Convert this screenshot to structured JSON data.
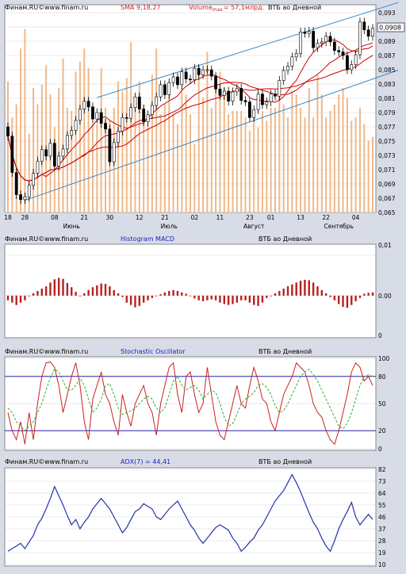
{
  "panels": {
    "price": {
      "source": "Финам.RU©",
      "site": "www.finam.ru",
      "indicator": "SMA 9,18,27",
      "volume_label": "Volume",
      "volume_sub": "max",
      "volume_value": "= 57,1млрд.",
      "instrument": "ВТБ ао Дневной",
      "last_price": "0,0908"
    },
    "macd": {
      "source": "Финам.RU©",
      "site": "www.finam.ru",
      "indicator": "Histogram MACD",
      "instrument": "ВТБ ао Дневной"
    },
    "stoch": {
      "source": "Финам.RU©",
      "site": "www.finam.ru",
      "indicator": "Stochastic Oscillator",
      "instrument": "ВТБ ао Дневной"
    },
    "adx": {
      "source": "Финам.RU©",
      "site": "www.finam.ru",
      "indicator": "ADX(7) = 44,41",
      "instrument": "ВТБ ао Дневной"
    }
  },
  "colors": {
    "background": "#d8dce6",
    "panel": "#ffffff",
    "grid": "#d0d4dc",
    "candle": "#000000",
    "volume": "#f0b888",
    "sma": "#cc0000",
    "channel": "#3388cc",
    "macd": "#b82020",
    "stoch_k": "#cc2020",
    "stoch_d": "#33aa33",
    "stoch_level": "#2222aa",
    "adx": "#2233aa",
    "title_blue": "#2020c0",
    "title_red": "#d02020"
  },
  "chart_data": [
    {
      "type": "candlestick",
      "name": "price",
      "ylim": [
        0.065,
        0.093
      ],
      "y_ticks": [
        "0,093",
        "0,091",
        "0,089",
        "0,087",
        "0,085",
        "0,083",
        "0,081",
        "0,079",
        "0,077",
        "0,075",
        "0,073",
        "0,071",
        "0,069",
        "0,067",
        "0,065"
      ],
      "x_tick_labels": [
        "18",
        "28",
        "08",
        "21",
        "30",
        "12",
        "21",
        "02",
        "11",
        "23",
        "01",
        "13",
        "22",
        "04"
      ],
      "x_tick_index": [
        0,
        4,
        11,
        18,
        24,
        31,
        37,
        44,
        50,
        57,
        62,
        69,
        75,
        82
      ],
      "month_labels": [
        "Июнь",
        "Июль",
        "Август",
        "Сентябрь"
      ],
      "month_index": [
        15,
        38,
        58,
        78
      ],
      "close": [
        0.0757,
        0.0706,
        0.0675,
        0.0668,
        0.0672,
        0.0688,
        0.0705,
        0.0722,
        0.0738,
        0.0729,
        0.0747,
        0.0715,
        0.0729,
        0.0739,
        0.0758,
        0.0765,
        0.0779,
        0.0795,
        0.0806,
        0.0798,
        0.0781,
        0.079,
        0.0775,
        0.0767,
        0.0721,
        0.0748,
        0.0764,
        0.0783,
        0.0782,
        0.0797,
        0.0812,
        0.0795,
        0.0777,
        0.0787,
        0.08,
        0.0812,
        0.0829,
        0.0815,
        0.0832,
        0.084,
        0.0829,
        0.0847,
        0.0837,
        0.0836,
        0.0852,
        0.0843,
        0.085,
        0.085,
        0.0841,
        0.0823,
        0.0814,
        0.082,
        0.0806,
        0.0819,
        0.0824,
        0.0807,
        0.0805,
        0.0783,
        0.0794,
        0.0816,
        0.0801,
        0.0805,
        0.0816,
        0.0813,
        0.0835,
        0.0849,
        0.0855,
        0.0868,
        0.0873,
        0.0903,
        0.0901,
        0.0904,
        0.0881,
        0.0887,
        0.0889,
        0.0897,
        0.0889,
        0.0877,
        0.0875,
        0.087,
        0.085,
        0.0857,
        0.0871,
        0.0917,
        0.0906,
        0.0897,
        0.0908
      ],
      "open": [
        0.077,
        0.0757,
        0.0706,
        0.0675,
        0.0668,
        0.0672,
        0.0688,
        0.0705,
        0.0722,
        0.0738,
        0.0729,
        0.0747,
        0.0715,
        0.0729,
        0.0739,
        0.0758,
        0.0765,
        0.0779,
        0.0795,
        0.0806,
        0.0798,
        0.0781,
        0.079,
        0.0775,
        0.0767,
        0.0721,
        0.0748,
        0.0764,
        0.0783,
        0.0782,
        0.0797,
        0.0812,
        0.0795,
        0.0777,
        0.0787,
        0.08,
        0.0812,
        0.0829,
        0.0815,
        0.0832,
        0.084,
        0.0829,
        0.0847,
        0.0837,
        0.0836,
        0.0852,
        0.0843,
        0.085,
        0.085,
        0.0841,
        0.0823,
        0.0814,
        0.082,
        0.0806,
        0.0819,
        0.0824,
        0.0807,
        0.0805,
        0.0783,
        0.0794,
        0.0816,
        0.0801,
        0.0805,
        0.0816,
        0.0813,
        0.0835,
        0.0849,
        0.0855,
        0.0868,
        0.0873,
        0.0903,
        0.0901,
        0.0904,
        0.0881,
        0.0887,
        0.0889,
        0.0897,
        0.0889,
        0.0877,
        0.0875,
        0.087,
        0.085,
        0.0857,
        0.0871,
        0.0917,
        0.0906,
        0.0897
      ],
      "volume": [
        40,
        29,
        33,
        50,
        56,
        24,
        38,
        33,
        39,
        45,
        36,
        26,
        38,
        47,
        32,
        31,
        43,
        46,
        50,
        44,
        27,
        27,
        44,
        32,
        28,
        32,
        40,
        37,
        41,
        52,
        35,
        40,
        33,
        27,
        42,
        50,
        30,
        33,
        40,
        30,
        27,
        38,
        36,
        30,
        21,
        45,
        35,
        49,
        32,
        38,
        43,
        38,
        30,
        31,
        31,
        31,
        29,
        25,
        30,
        26,
        31,
        28,
        32,
        32,
        38,
        33,
        29,
        37,
        36,
        32,
        29,
        38,
        29,
        42,
        36,
        29,
        31,
        33,
        36,
        38,
        35,
        28,
        29,
        32,
        27,
        22,
        23
      ],
      "sma_periods": [
        9,
        18,
        27
      ],
      "channel_upper": [
        [
          21,
          0.0811
        ],
        [
          86,
          0.0933
        ]
      ],
      "channel_lower": [
        [
          4,
          0.0667
        ],
        [
          86,
          0.0837
        ]
      ]
    },
    {
      "type": "bar",
      "name": "Histogram MACD",
      "ylim": [
        -0.0008,
        0.001
      ],
      "y_ticks": [
        "0,01",
        "0.00",
        "0"
      ],
      "values": [
        -0.0001,
        -0.00015,
        -0.0002,
        -0.00015,
        -0.0001,
        0.0,
        5e-05,
        0.0001,
        0.00015,
        0.0002,
        0.00028,
        0.00035,
        0.00038,
        0.00036,
        0.00027,
        0.00018,
        8e-05,
        0.0,
        5e-05,
        0.00012,
        0.00018,
        0.00022,
        0.00026,
        0.00025,
        0.0002,
        0.00012,
        5e-05,
        -3e-05,
        -0.00015,
        -0.0002,
        -0.00025,
        -0.00022,
        -0.00015,
        -0.0001,
        -5e-05,
        0.0,
        3e-05,
        7e-05,
        0.0001,
        0.00012,
        0.0001,
        7e-05,
        4e-05,
        0.0,
        -6e-05,
        -0.0001,
        -0.00012,
        -0.0001,
        -8e-05,
        -0.0001,
        -0.00015,
        -0.00018,
        -0.0002,
        -0.00018,
        -0.00015,
        -0.0001,
        -0.0001,
        -0.00015,
        -0.0002,
        -0.00022,
        -0.00015,
        -5e-05,
        0.0,
        5e-05,
        0.0001,
        0.00015,
        0.0002,
        0.00024,
        0.00028,
        0.00032,
        0.00034,
        0.00033,
        0.00028,
        0.0002,
        0.00012,
        5e-05,
        -3e-05,
        -0.0001,
        -0.00018,
        -0.00024,
        -0.00026,
        -0.0002,
        -0.00012,
        -5e-05,
        4e-05,
        6e-05,
        7e-05
      ]
    },
    {
      "type": "line",
      "name": "Stochastic Oscillator",
      "ylim": [
        0,
        100
      ],
      "y_ticks": [
        100,
        80,
        50,
        20,
        0
      ],
      "levels": [
        80,
        20
      ],
      "series": [
        {
          "values": [
            40,
            20,
            10,
            30,
            5,
            40,
            10,
            50,
            80,
            95,
            96,
            90,
            70,
            40,
            60,
            80,
            95,
            70,
            30,
            10,
            55,
            70,
            85,
            60,
            50,
            30,
            15,
            60,
            40,
            25,
            50,
            60,
            70,
            50,
            40,
            15,
            50,
            70,
            90,
            95,
            60,
            40,
            80,
            85,
            60,
            40,
            50,
            90,
            60,
            30,
            15,
            10,
            30,
            50,
            70,
            50,
            45,
            70,
            90,
            75,
            55,
            50,
            30,
            20,
            40,
            60,
            70,
            80,
            95,
            90,
            85,
            70,
            50,
            40,
            35,
            20,
            10,
            5,
            20,
            40,
            60,
            85,
            95,
            90,
            75,
            80,
            70
          ]
        },
        {
          "values": [
            45,
            40,
            30,
            25,
            20,
            25,
            30,
            40,
            50,
            65,
            78,
            88,
            85,
            75,
            65,
            65,
            70,
            78,
            70,
            55,
            40,
            45,
            55,
            70,
            72,
            60,
            45,
            38,
            40,
            42,
            45,
            50,
            55,
            58,
            55,
            45,
            40,
            45,
            60,
            75,
            80,
            70,
            65,
            68,
            70,
            65,
            55,
            60,
            65,
            62,
            50,
            35,
            25,
            28,
            38,
            50,
            55,
            58,
            62,
            70,
            72,
            68,
            60,
            48,
            40,
            42,
            50,
            60,
            70,
            80,
            85,
            88,
            82,
            75,
            65,
            55,
            45,
            35,
            25,
            22,
            28,
            40,
            55,
            70,
            80,
            82,
            80
          ]
        }
      ]
    },
    {
      "type": "line",
      "name": "ADX(7)",
      "ylim": [
        10,
        82
      ],
      "y_ticks": [
        82,
        73,
        64,
        55,
        46,
        37,
        28,
        19,
        10
      ],
      "values": [
        20,
        22,
        24,
        26,
        22,
        27,
        32,
        40,
        45,
        52,
        60,
        69,
        62,
        55,
        47,
        40,
        44,
        37,
        42,
        46,
        52,
        56,
        60,
        56,
        52,
        46,
        40,
        34,
        38,
        44,
        50,
        52,
        56,
        54,
        52,
        46,
        44,
        48,
        52,
        55,
        58,
        52,
        46,
        40,
        36,
        30,
        26,
        30,
        34,
        38,
        40,
        38,
        36,
        30,
        26,
        20,
        23,
        27,
        30,
        36,
        40,
        46,
        52,
        58,
        62,
        66,
        72,
        78,
        72,
        65,
        57,
        49,
        42,
        37,
        30,
        24,
        20,
        28,
        37,
        44,
        50,
        57,
        46,
        40,
        44,
        48,
        44
      ]
    }
  ]
}
